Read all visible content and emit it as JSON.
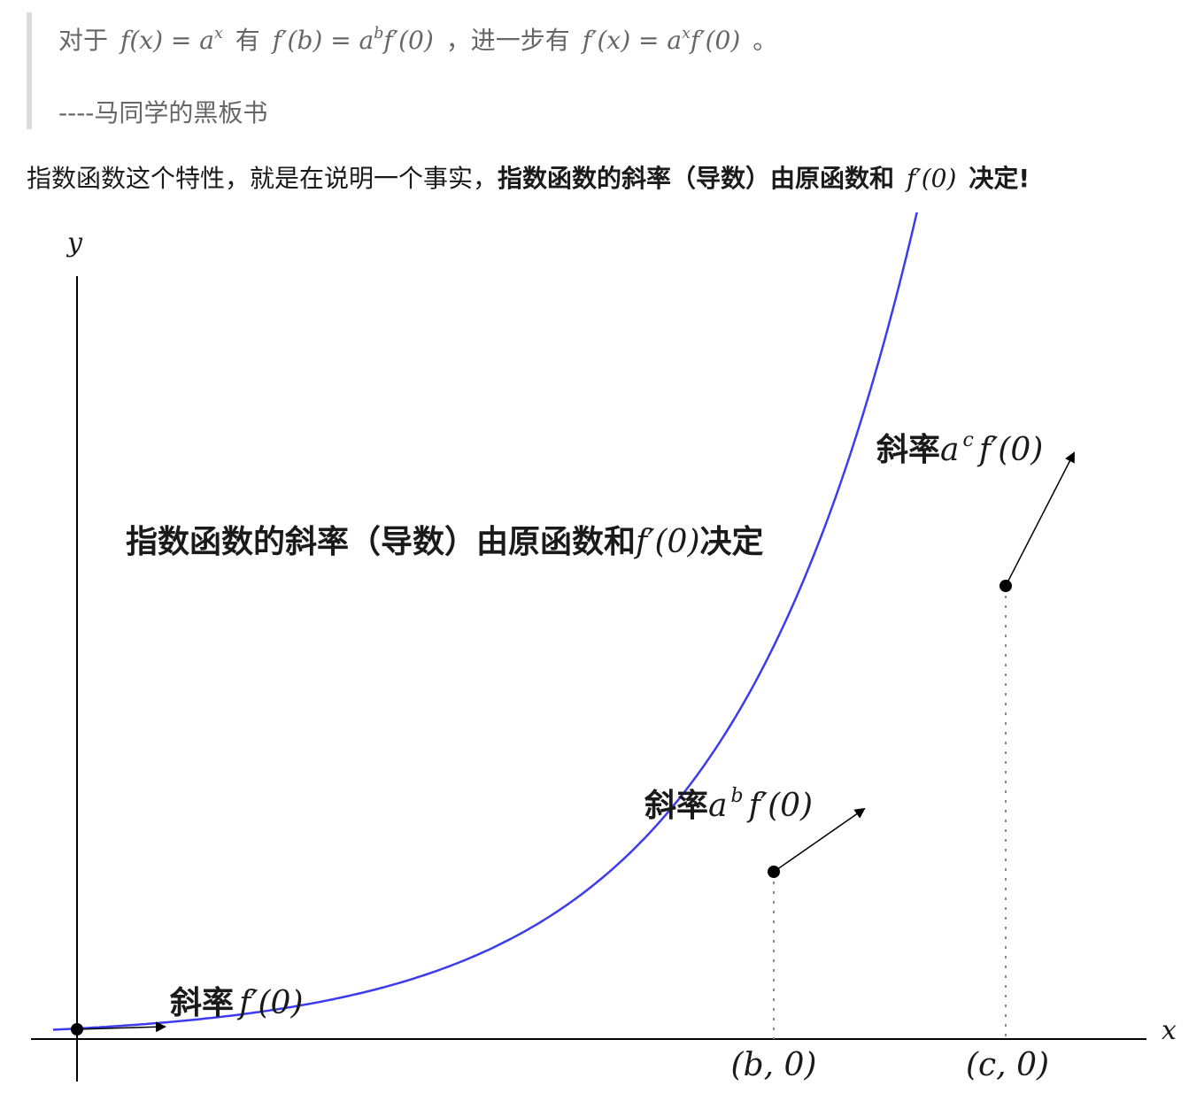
{
  "quote": {
    "line1": {
      "prefix": "对于",
      "expr1": "f(x) = a",
      "expr1_sup": "x",
      "mid1": "有",
      "expr2": "f′(b) = a",
      "expr2_sup": "b",
      "expr2_tail": "f′(0)",
      "mid2": "，进一步有",
      "expr3": "f′(x) = a",
      "expr3_sup": "x",
      "expr3_tail": "f′(0)",
      "end": "。"
    },
    "attribution": "----马同学的黑板书"
  },
  "main_text": {
    "plain": "指数函数这个特性，就是在说明一个事实，",
    "bold": "指数函数的斜率（导数）由原函数和",
    "math": "f′(0)",
    "bold_end": "决定!"
  },
  "figure": {
    "axis_x_label": "x",
    "axis_y_label": "y",
    "caption_cn": "指数函数的斜率（导数）由原函数和",
    "caption_math": "f′(0)",
    "caption_tail": "决定",
    "slope_word": "斜率",
    "label_origin_math": "f′(0)",
    "label_b_base": "a",
    "label_b_sup": "b",
    "label_b_tail": "f′(0)",
    "label_c_base": "a",
    "label_c_sup": "c",
    "label_c_tail": "f′(0)",
    "tick_b": "(b, 0)",
    "tick_c": "(c, 0)",
    "curve_color": "#3b3bf0",
    "axis_color": "#000000"
  }
}
